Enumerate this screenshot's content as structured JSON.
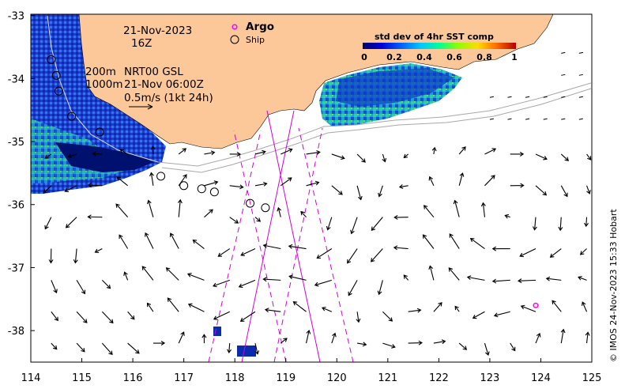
{
  "date_line": "21-Nov-2023",
  "hour_line": "16Z",
  "depth_200": "200m",
  "depth_1000": "1000m",
  "product": "NRT00 GSL",
  "vector_time": "21-Nov 06:00Z",
  "scale_label": "0.5m/s (1kt 24h)",
  "legend": {
    "argo": "Argo",
    "ship": "Ship"
  },
  "colorbar": {
    "title": "std dev of 4hr SST comp",
    "ticks": [
      "0",
      "0.2",
      "0.4",
      "0.6",
      "0.8",
      "1"
    ],
    "colors": [
      "#00006a",
      "#0000c8",
      "#0050ff",
      "#00b4ff",
      "#00ffc8",
      "#5aff3c",
      "#d2ff00",
      "#ffc800",
      "#ff6400",
      "#c80000"
    ]
  },
  "credit": "© IMOS 24-Nov-2023 15:33 Hobart",
  "axes": {
    "x_ticks": [
      "114",
      "115",
      "116",
      "117",
      "118",
      "119",
      "120",
      "121",
      "122",
      "123",
      "124",
      "125"
    ],
    "y_ticks": [
      "-33",
      "-34",
      "-35",
      "-36",
      "-37",
      "-38"
    ]
  },
  "colors": {
    "land": "#fcc89a",
    "argo": "#ff00ff",
    "track": "#d400d4",
    "isobath": "#a8a8a8",
    "arrow": "#000000"
  },
  "ship_stations": [
    [
      114.4,
      -33.7
    ],
    [
      114.5,
      -33.95
    ],
    [
      114.55,
      -34.2
    ],
    [
      114.8,
      -34.6
    ],
    [
      115.35,
      -34.85
    ],
    [
      116.55,
      -35.55
    ],
    [
      117.0,
      -35.7
    ],
    [
      117.35,
      -35.75
    ],
    [
      117.6,
      -35.8
    ],
    [
      118.3,
      -35.98
    ],
    [
      118.6,
      -36.05
    ]
  ],
  "argo_float": [
    123.9,
    -37.6
  ]
}
